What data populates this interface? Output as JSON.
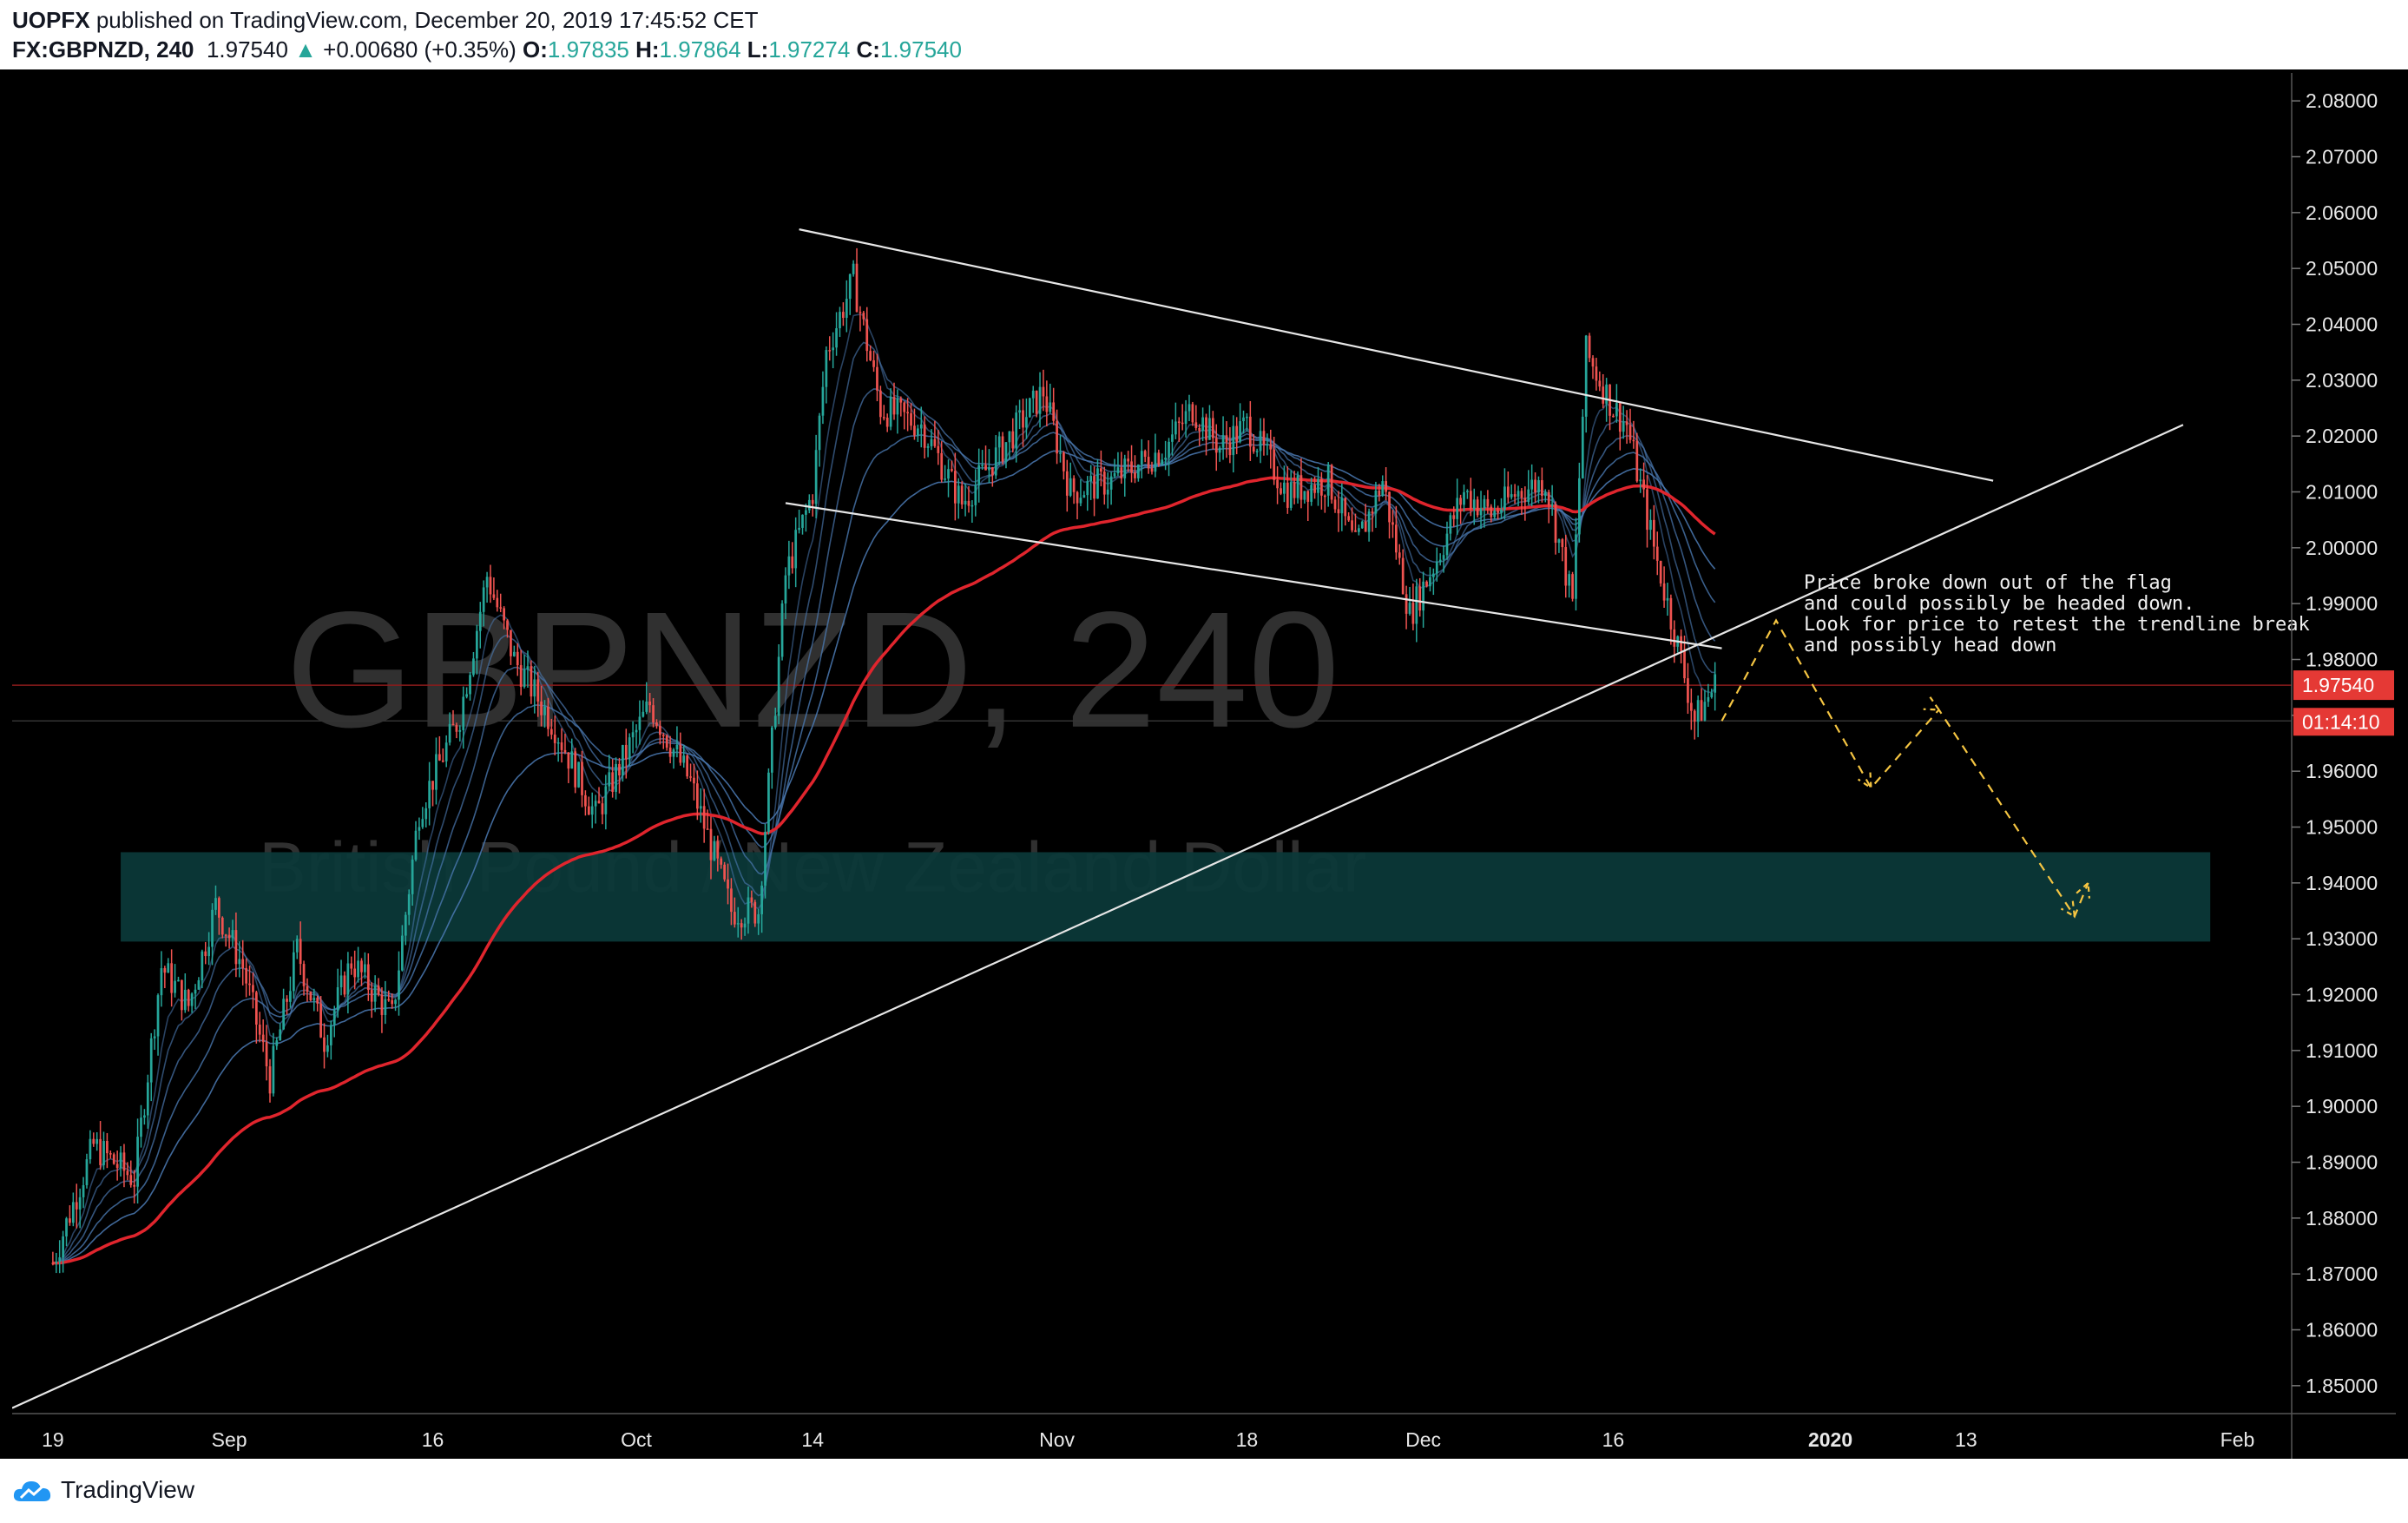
{
  "header": {
    "publisher": "UOPFX",
    "published_text": "published on TradingView.com, December 20, 2019 17:45:52 CET",
    "symbol": "FX:GBPNZD, 240",
    "last": "1.97540",
    "change": "+0.00680 (+0.35%)",
    "o_label": "O:",
    "o_value": "1.97835",
    "h_label": "H:",
    "h_value": "1.97864",
    "l_label": "L:",
    "l_value": "1.97274",
    "c_label": "C:",
    "c_value": "1.97540"
  },
  "footer": {
    "brand": "TradingView"
  },
  "colors": {
    "up": "#26a69a",
    "down": "#ef5350",
    "zone": "#0b3a3a",
    "ema_slow": "#e0252d",
    "ema_fast": "#4a78b0",
    "forecast": "#f5c542"
  },
  "chart_data": {
    "type": "candlestick",
    "ylim": [
      1.845,
      2.085
    ],
    "y_ticks": [
      "2.08000",
      "2.07000",
      "2.06000",
      "2.05000",
      "2.04000",
      "2.03000",
      "2.02000",
      "2.01000",
      "2.00000",
      "1.99000",
      "1.98000",
      "1.97000",
      "1.96000",
      "1.95000",
      "1.94000",
      "1.93000",
      "1.92000",
      "1.91000",
      "1.90000",
      "1.89000",
      "1.88000",
      "1.87000",
      "1.86000",
      "1.85000"
    ],
    "x_ticks": [
      {
        "label": "19",
        "t": 0
      },
      {
        "label": "Sep",
        "t": 13
      },
      {
        "label": "16",
        "t": 28
      },
      {
        "label": "Oct",
        "t": 43
      },
      {
        "label": "14",
        "t": 56
      },
      {
        "label": "Nov",
        "t": 74
      },
      {
        "label": "18",
        "t": 88
      },
      {
        "label": "Dec",
        "t": 101
      },
      {
        "label": "16",
        "t": 115
      },
      {
        "label": "2020",
        "t": 131
      },
      {
        "label": "13",
        "t": 141
      },
      {
        "label": "Feb",
        "t": 161
      }
    ],
    "x_range": [
      -3,
      165
    ],
    "watermark_symbol": "GBPNZD, 240",
    "watermark_name": "British Pound / New Zealand Dollar",
    "price_label": "1.97540",
    "countdown_label": "01:14:10",
    "price_line": 1.9754,
    "annotation": [
      "Price broke down out of the flag",
      "and could possibly be headed down.",
      "Look for price to retest the trendline break",
      "and possibly head down"
    ],
    "anchors": [
      {
        "t": 0,
        "p": 1.872
      },
      {
        "t": 3,
        "p": 1.893
      },
      {
        "t": 6,
        "p": 1.887
      },
      {
        "t": 8,
        "p": 1.925
      },
      {
        "t": 10,
        "p": 1.918
      },
      {
        "t": 12,
        "p": 1.936
      },
      {
        "t": 14,
        "p": 1.925
      },
      {
        "t": 16,
        "p": 1.905
      },
      {
        "t": 18,
        "p": 1.928
      },
      {
        "t": 20,
        "p": 1.912
      },
      {
        "t": 22,
        "p": 1.926
      },
      {
        "t": 25,
        "p": 1.916
      },
      {
        "t": 27,
        "p": 1.953
      },
      {
        "t": 30,
        "p": 1.97
      },
      {
        "t": 32,
        "p": 1.995
      },
      {
        "t": 34,
        "p": 1.98
      },
      {
        "t": 37,
        "p": 1.968
      },
      {
        "t": 40,
        "p": 1.952
      },
      {
        "t": 44,
        "p": 1.972
      },
      {
        "t": 47,
        "p": 1.958
      },
      {
        "t": 50,
        "p": 1.935
      },
      {
        "t": 52,
        "p": 1.935
      },
      {
        "t": 54,
        "p": 1.995
      },
      {
        "t": 56,
        "p": 2.01
      },
      {
        "t": 57,
        "p": 2.035
      },
      {
        "t": 59,
        "p": 2.048
      },
      {
        "t": 61,
        "p": 2.025
      },
      {
        "t": 64,
        "p": 2.022
      },
      {
        "t": 67,
        "p": 2.008
      },
      {
        "t": 70,
        "p": 2.018
      },
      {
        "t": 73,
        "p": 2.028
      },
      {
        "t": 75,
        "p": 2.01
      },
      {
        "t": 78,
        "p": 2.012
      },
      {
        "t": 82,
        "p": 2.018
      },
      {
        "t": 84,
        "p": 2.025
      },
      {
        "t": 86,
        "p": 2.018
      },
      {
        "t": 88,
        "p": 2.022
      },
      {
        "t": 91,
        "p": 2.01
      },
      {
        "t": 94,
        "p": 2.012
      },
      {
        "t": 96,
        "p": 2.0
      },
      {
        "t": 98,
        "p": 2.012
      },
      {
        "t": 100,
        "p": 1.988
      },
      {
        "t": 102,
        "p": 1.998
      },
      {
        "t": 104,
        "p": 2.01
      },
      {
        "t": 106,
        "p": 2.006
      },
      {
        "t": 108,
        "p": 2.01
      },
      {
        "t": 110,
        "p": 2.012
      },
      {
        "t": 112,
        "p": 1.99
      },
      {
        "t": 113,
        "p": 2.035
      },
      {
        "t": 115,
        "p": 2.025
      },
      {
        "t": 116,
        "p": 2.022
      },
      {
        "t": 118,
        "p": 2.0
      },
      {
        "t": 120,
        "p": 1.98
      },
      {
        "t": 121,
        "p": 1.969
      },
      {
        "t": 122.5,
        "p": 1.9754
      }
    ],
    "trendlines": [
      {
        "name": "flag-upper",
        "p1": {
          "t": 55,
          "p": 2.057
        },
        "p2": {
          "t": 143,
          "p": 2.012
        }
      },
      {
        "name": "flag-lower",
        "p1": {
          "t": 54,
          "p": 2.008
        },
        "p2": {
          "t": 123,
          "p": 1.982
        }
      },
      {
        "name": "support",
        "p1": {
          "t": -3,
          "p": 1.846
        },
        "p2": {
          "t": 157,
          "p": 2.022
        }
      }
    ],
    "zone": {
      "t1": 5,
      "t2": 159,
      "p1": 1.9295,
      "p2": 1.9455
    },
    "forecast": [
      {
        "t": 123,
        "p": 1.969
      },
      {
        "t": 127,
        "p": 1.987
      },
      {
        "t": 134,
        "p": 1.957
      },
      {
        "t": 139,
        "p": 1.971
      },
      {
        "t": 149,
        "p": 1.934
      },
      {
        "t": 150,
        "p": 1.94
      }
    ]
  }
}
